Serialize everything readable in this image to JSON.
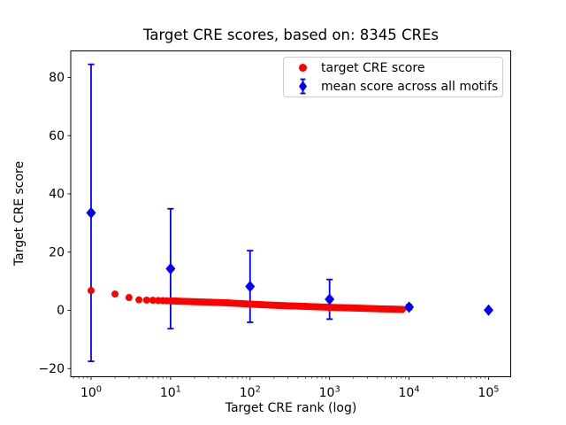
{
  "figure": {
    "background": "#ffffff",
    "text_color": "#000000"
  },
  "chart_data": {
    "type": "scatter",
    "title": "Target CRE scores, based on: 8345 CREs",
    "xlabel": "Target CRE rank (log)",
    "ylabel": "Target CRE score",
    "x_scale": "log",
    "grid": false,
    "legend_position": "upper right",
    "xlim": [
      0.555,
      190000
    ],
    "ylim": [
      -22.8,
      89.1
    ],
    "x_tick_base": "10",
    "x_tick_exponents": [
      0,
      1,
      2,
      3,
      4,
      5
    ],
    "y_ticks": [
      -20,
      0,
      20,
      40,
      60,
      80
    ],
    "n_cres": 8345,
    "series": [
      {
        "name": "target CRE score",
        "type": "scatter",
        "marker": "circle",
        "color": "#ff0000",
        "points_count": 8345,
        "profile_rank_score": [
          [
            1,
            6.8
          ],
          [
            2,
            5.6
          ],
          [
            3,
            4.4
          ],
          [
            4,
            3.6
          ],
          [
            6,
            3.45
          ],
          [
            10,
            3.25
          ],
          [
            20,
            2.95
          ],
          [
            50,
            2.6
          ],
          [
            100,
            2.15
          ],
          [
            200,
            1.75
          ],
          [
            500,
            1.35
          ],
          [
            1000,
            1.05
          ],
          [
            2000,
            0.8
          ],
          [
            4000,
            0.55
          ],
          [
            8345,
            0.32
          ]
        ]
      },
      {
        "name": "mean score across all motifs",
        "type": "errorbar",
        "marker": "diamond",
        "color": "#0000ff",
        "points": [
          {
            "rank": 1,
            "mean": 33.5,
            "err": 51.0
          },
          {
            "rank": 10,
            "mean": 14.3,
            "err": 20.6
          },
          {
            "rank": 100,
            "mean": 8.2,
            "err": 12.3
          },
          {
            "rank": 1000,
            "mean": 3.8,
            "err": 6.8
          },
          {
            "rank": 10000,
            "mean": 1.1,
            "err": 0.8
          },
          {
            "rank": 100000,
            "mean": 0.1,
            "err": 0.2
          }
        ]
      }
    ]
  }
}
